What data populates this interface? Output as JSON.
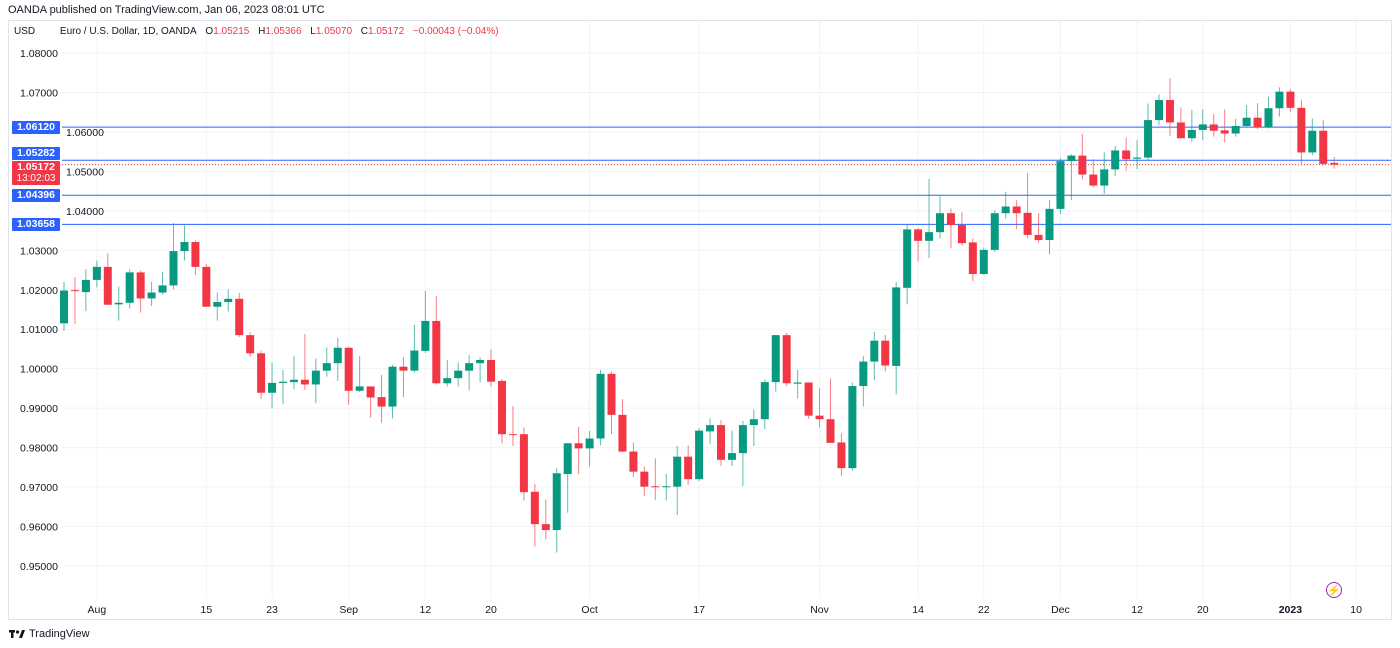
{
  "header": {
    "published": "OANDA published on TradingView.com, Jan 06, 2023 08:01 UTC"
  },
  "legend": {
    "currency": "USD",
    "symbol": "Euro / U.S. Dollar, 1D, OANDA",
    "o_label": "O",
    "o": "1.05215",
    "h_label": "H",
    "h": "1.05366",
    "l_label": "L",
    "l": "1.05070",
    "c_label": "C",
    "c": "1.05172",
    "change": "−0.00043 (−0.04%)"
  },
  "levels": [
    {
      "label": "1.06120",
      "price": 1.0612
    },
    {
      "label": "1.05282",
      "price": 1.05282
    },
    {
      "label": "1.04396",
      "price": 1.04396
    },
    {
      "label": "1.03658",
      "price": 1.03658
    }
  ],
  "current": {
    "label": "1.05172",
    "price": 1.05172,
    "countdown": "13:02:03"
  },
  "footer": {
    "brand": "TradingView"
  },
  "colors": {
    "up": "#089981",
    "down": "#f23645",
    "level": "#2962ff"
  },
  "chart_data": {
    "type": "candlestick",
    "title": "Euro / U.S. Dollar, 1D, OANDA",
    "ylabel": "USD",
    "ylim": [
      0.945,
      1.086
    ],
    "grid": true,
    "y_ticks": [
      "1.08000",
      "1.07000",
      "1.06000",
      "1.05000",
      "1.04000",
      "1.03000",
      "1.02000",
      "1.01000",
      "1.00000",
      "0.99000",
      "0.98000",
      "0.97000",
      "0.96000",
      "0.95000"
    ],
    "x_ticks": [
      {
        "label": "Aug",
        "index": 3
      },
      {
        "label": "15",
        "index": 13
      },
      {
        "label": "23",
        "index": 19
      },
      {
        "label": "Sep",
        "index": 26
      },
      {
        "label": "12",
        "index": 33
      },
      {
        "label": "20",
        "index": 39
      },
      {
        "label": "Oct",
        "index": 48
      },
      {
        "label": "17",
        "index": 58
      },
      {
        "label": "Nov",
        "index": 69
      },
      {
        "label": "14",
        "index": 78
      },
      {
        "label": "22",
        "index": 84
      },
      {
        "label": "Dec",
        "index": 91
      },
      {
        "label": "12",
        "index": 98
      },
      {
        "label": "20",
        "index": 104
      },
      {
        "label": "2023",
        "index": 112
      },
      {
        "label": "10",
        "index": 118
      }
    ],
    "ohlc": [
      [
        1.0115,
        1.022,
        1.0096,
        1.0198
      ],
      [
        1.0199,
        1.0232,
        1.0113,
        1.0197
      ],
      [
        1.0194,
        1.0252,
        1.0146,
        1.0225
      ],
      [
        1.0225,
        1.0274,
        1.0206,
        1.0258
      ],
      [
        1.0258,
        1.0293,
        1.0162,
        1.0162
      ],
      [
        1.0163,
        1.0208,
        1.0122,
        1.0167
      ],
      [
        1.0167,
        1.0252,
        1.0152,
        1.0244
      ],
      [
        1.0244,
        1.0249,
        1.0142,
        1.0178
      ],
      [
        1.0178,
        1.022,
        1.0159,
        1.0193
      ],
      [
        1.0193,
        1.0246,
        1.0188,
        1.0211
      ],
      [
        1.0211,
        1.0369,
        1.0201,
        1.0298
      ],
      [
        1.0298,
        1.0363,
        1.0274,
        1.0321
      ],
      [
        1.0321,
        1.0325,
        1.0238,
        1.0258
      ],
      [
        1.0258,
        1.0265,
        1.0157,
        1.0157
      ],
      [
        1.0157,
        1.0193,
        1.0122,
        1.0169
      ],
      [
        1.0169,
        1.0201,
        1.0145,
        1.0177
      ],
      [
        1.0177,
        1.0192,
        1.008,
        1.0085
      ],
      [
        1.0085,
        1.0093,
        1.0031,
        1.0039
      ],
      [
        1.0039,
        1.0046,
        0.9924,
        0.9939
      ],
      [
        0.9939,
        1.0016,
        0.9899,
        0.9964
      ],
      [
        0.9964,
        0.9997,
        0.991,
        0.9967
      ],
      [
        0.9966,
        1.0032,
        0.9948,
        0.9972
      ],
      [
        0.9972,
        1.0088,
        0.9946,
        0.996
      ],
      [
        0.996,
        1.0026,
        0.9913,
        0.9995
      ],
      [
        0.9995,
        1.0054,
        0.998,
        1.0014
      ],
      [
        1.0014,
        1.0078,
        0.9969,
        1.0053
      ],
      [
        1.0053,
        1.0056,
        0.9909,
        0.9944
      ],
      [
        0.9944,
        1.0032,
        0.9941,
        0.9955
      ],
      [
        0.9955,
        0.9955,
        0.9876,
        0.9927
      ],
      [
        0.9928,
        0.9984,
        0.9863,
        0.9904
      ],
      [
        0.9904,
        1.001,
        0.9874,
        1.0005
      ],
      [
        1.0005,
        1.0029,
        0.9928,
        0.9995
      ],
      [
        0.9995,
        1.0111,
        0.999,
        1.0046
      ],
      [
        1.0045,
        1.0197,
        1.004,
        1.0121
      ],
      [
        1.0121,
        1.0184,
        0.996,
        0.9963
      ],
      [
        0.9963,
        1.0022,
        0.9955,
        0.9976
      ],
      [
        0.9976,
        1.0016,
        0.9955,
        0.9995
      ],
      [
        0.9995,
        1.0034,
        0.9945,
        1.0014
      ],
      [
        1.0014,
        1.0029,
        0.9965,
        1.0022
      ],
      [
        1.0022,
        1.0049,
        0.9955,
        0.9967
      ],
      [
        0.9969,
        0.9973,
        0.9811,
        0.9834
      ],
      [
        0.9834,
        0.9905,
        0.9804,
        0.9832
      ],
      [
        0.9834,
        0.9851,
        0.9666,
        0.9687
      ],
      [
        0.9688,
        0.9708,
        0.9549,
        0.9606
      ],
      [
        0.9606,
        0.9669,
        0.9568,
        0.9591
      ],
      [
        0.9591,
        0.9748,
        0.9534,
        0.9735
      ],
      [
        0.9733,
        0.9811,
        0.9635,
        0.9811
      ],
      [
        0.9811,
        0.9852,
        0.9733,
        0.9798
      ],
      [
        0.9798,
        0.9842,
        0.9752,
        0.9823
      ],
      [
        0.9823,
        0.9997,
        0.9806,
        0.9987
      ],
      [
        0.9987,
        0.9993,
        0.9834,
        0.9883
      ],
      [
        0.9883,
        0.9923,
        0.9788,
        0.979
      ],
      [
        0.979,
        0.9813,
        0.9725,
        0.9739
      ],
      [
        0.9739,
        0.9752,
        0.9678,
        0.9701
      ],
      [
        0.9702,
        0.9773,
        0.9667,
        0.9701
      ],
      [
        0.9701,
        0.9733,
        0.9666,
        0.9702
      ],
      [
        0.9701,
        0.9804,
        0.9629,
        0.9777
      ],
      [
        0.9777,
        0.9806,
        0.9706,
        0.972
      ],
      [
        0.972,
        0.985,
        0.9715,
        0.9843
      ],
      [
        0.9841,
        0.9874,
        0.9809,
        0.9857
      ],
      [
        0.9857,
        0.987,
        0.9754,
        0.9769
      ],
      [
        0.9769,
        0.9843,
        0.9753,
        0.9786
      ],
      [
        0.9786,
        0.9868,
        0.9703,
        0.9857
      ],
      [
        0.9857,
        0.9897,
        0.9804,
        0.9872
      ],
      [
        0.9872,
        0.9973,
        0.9847,
        0.9966
      ],
      [
        0.9966,
        1.0085,
        0.9942,
        1.0085
      ],
      [
        1.0085,
        1.0091,
        0.9956,
        0.9963
      ],
      [
        0.9962,
        0.9997,
        0.9924,
        0.9965
      ],
      [
        0.9965,
        0.9965,
        0.9873,
        0.9881
      ],
      [
        0.9881,
        0.9951,
        0.9851,
        0.9872
      ],
      [
        0.9872,
        0.9975,
        0.9812,
        0.9812
      ],
      [
        0.9813,
        0.9836,
        0.9728,
        0.9748
      ],
      [
        0.9748,
        0.9965,
        0.9742,
        0.9956
      ],
      [
        0.9956,
        1.0032,
        0.9904,
        1.0018
      ],
      [
        1.0018,
        1.0094,
        0.9971,
        1.0071
      ],
      [
        1.0071,
        1.0086,
        0.9993,
        1.0008
      ],
      [
        1.0007,
        1.0219,
        0.9935,
        1.0206
      ],
      [
        1.0205,
        1.0364,
        1.0163,
        1.0353
      ],
      [
        1.0353,
        1.0356,
        1.0271,
        1.0324
      ],
      [
        1.0324,
        1.0481,
        1.028,
        1.0346
      ],
      [
        1.0346,
        1.0437,
        1.033,
        1.0394
      ],
      [
        1.0394,
        1.0406,
        1.0305,
        1.0364
      ],
      [
        1.0364,
        1.0396,
        1.0312,
        1.0318
      ],
      [
        1.032,
        1.033,
        1.0222,
        1.024
      ],
      [
        1.024,
        1.0307,
        1.0238,
        1.0301
      ],
      [
        1.0301,
        1.0402,
        1.0296,
        1.0394
      ],
      [
        1.0394,
        1.0448,
        1.038,
        1.0411
      ],
      [
        1.0411,
        1.0427,
        1.0354,
        1.0394
      ],
      [
        1.0395,
        1.0496,
        1.033,
        1.0339
      ],
      [
        1.0339,
        1.0394,
        1.0319,
        1.0326
      ],
      [
        1.0326,
        1.0427,
        1.029,
        1.0405
      ],
      [
        1.0405,
        1.0533,
        1.0392,
        1.0526
      ],
      [
        1.0526,
        1.0543,
        1.0427,
        1.054
      ],
      [
        1.054,
        1.0595,
        1.048,
        1.0492
      ],
      [
        1.0492,
        1.0531,
        1.046,
        1.0464
      ],
      [
        1.0464,
        1.0548,
        1.0443,
        1.0505
      ],
      [
        1.0505,
        1.0564,
        1.0488,
        1.0553
      ],
      [
        1.0553,
        1.0586,
        1.0502,
        1.0531
      ],
      [
        1.0532,
        1.0579,
        1.0506,
        1.0535
      ],
      [
        1.0535,
        1.0672,
        1.0527,
        1.063
      ],
      [
        1.063,
        1.0695,
        1.0617,
        1.0681
      ],
      [
        1.0681,
        1.0736,
        1.059,
        1.0624
      ],
      [
        1.0624,
        1.0662,
        1.0584,
        1.0584
      ],
      [
        1.0584,
        1.0656,
        1.0575,
        1.0605
      ],
      [
        1.0605,
        1.0658,
        1.0579,
        1.0619
      ],
      [
        1.0619,
        1.0645,
        1.0588,
        1.0603
      ],
      [
        1.0604,
        1.0657,
        1.0573,
        1.0596
      ],
      [
        1.0596,
        1.0633,
        1.0588,
        1.0615
      ],
      [
        1.0615,
        1.0668,
        1.0612,
        1.0636
      ],
      [
        1.0636,
        1.0673,
        1.0607,
        1.0612
      ],
      [
        1.0612,
        1.0689,
        1.0609,
        1.066
      ],
      [
        1.066,
        1.0713,
        1.0639,
        1.0702
      ],
      [
        1.0702,
        1.0708,
        1.0651,
        1.0661
      ],
      [
        1.0661,
        1.0682,
        1.0519,
        1.0548
      ],
      [
        1.0548,
        1.0634,
        1.0541,
        1.0603
      ],
      [
        1.0603,
        1.063,
        1.0516,
        1.0519
      ],
      [
        1.05215,
        1.05366,
        1.0507,
        1.05172
      ]
    ]
  }
}
